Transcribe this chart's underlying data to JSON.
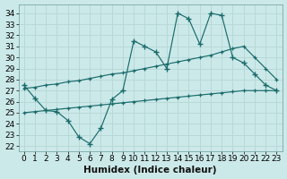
{
  "bg_color": "#cce9e9",
  "line_color": "#1a6b6b",
  "grid_color": "#b8d8d8",
  "xlim": [
    -0.5,
    23.5
  ],
  "ylim": [
    21.5,
    34.8
  ],
  "xticks": [
    0,
    1,
    2,
    3,
    4,
    5,
    6,
    7,
    8,
    9,
    10,
    11,
    12,
    13,
    14,
    15,
    16,
    17,
    18,
    19,
    20,
    21,
    22,
    23
  ],
  "yticks": [
    22,
    23,
    24,
    25,
    26,
    27,
    28,
    29,
    30,
    31,
    32,
    33,
    34
  ],
  "xlabel": "Humidex (Indice chaleur)",
  "tick_fontsize": 6.5,
  "label_fontsize": 7.5,
  "line1_x": [
    0,
    1,
    2,
    3,
    4,
    5,
    6,
    7,
    8,
    9,
    10,
    11,
    12,
    13,
    14,
    15,
    16,
    17,
    18,
    19,
    20,
    21,
    22,
    23
  ],
  "line1_y": [
    27.5,
    26.3,
    25.2,
    25.1,
    24.3,
    22.8,
    22.2,
    23.6,
    26.2,
    27.0,
    31.5,
    31.0,
    30.5,
    29.0,
    34.0,
    33.5,
    31.2,
    34.0,
    33.8,
    30.0,
    29.5,
    28.5,
    27.5,
    27.0
  ],
  "line2_x": [
    0,
    1,
    2,
    3,
    4,
    5,
    6,
    7,
    8,
    9,
    10,
    11,
    12,
    13,
    14,
    15,
    16,
    17,
    18,
    19,
    20,
    21,
    22,
    23
  ],
  "line2_y": [
    27.2,
    27.3,
    27.5,
    27.6,
    27.8,
    27.9,
    28.1,
    28.3,
    28.5,
    28.6,
    28.8,
    29.0,
    29.2,
    29.4,
    29.6,
    29.8,
    30.0,
    30.2,
    30.5,
    30.8,
    31.0,
    30.0,
    29.0,
    28.0
  ],
  "line3_x": [
    0,
    1,
    2,
    3,
    4,
    5,
    6,
    7,
    8,
    9,
    10,
    11,
    12,
    13,
    14,
    15,
    16,
    17,
    18,
    19,
    20,
    21,
    22,
    23
  ],
  "line3_y": [
    25.0,
    25.1,
    25.2,
    25.3,
    25.4,
    25.5,
    25.6,
    25.7,
    25.8,
    25.9,
    26.0,
    26.1,
    26.2,
    26.3,
    26.4,
    26.5,
    26.6,
    26.7,
    26.8,
    26.9,
    27.0,
    27.0,
    27.0,
    27.0
  ]
}
